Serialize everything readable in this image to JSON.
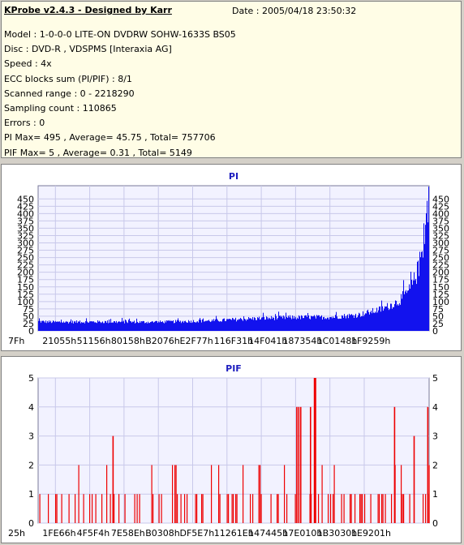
{
  "header": {
    "title": "KProbe v2.4.3 - Designed by Karr",
    "date": "Date : 2005/04/18 23:50:32"
  },
  "info_lines": [
    "Model : 1-0-0-0 LITE-ON DVDRW SOHW-1633S BS05",
    "Disc : DVD-R , VDSPMS [Interaxia AG]",
    "Speed : 4x",
    "ECC blocks sum (PI/PIF) : 8/1",
    "Scanned range : 0 - 2218290",
    "Sampling count : 110865",
    "Errors : 0",
    "PI Max= 495 , Average= 45.75 , Total= 757706",
    "PIF Max= 5 , Average= 0.31 , Total= 5149"
  ],
  "colors": {
    "pi_fill": "#1212ee",
    "pif_fill": "#ee0000",
    "plot_bg": "#f2f2ff",
    "grid": "#c8c8ea",
    "title": "#1d1dbf"
  },
  "chart_data": [
    {
      "type": "area",
      "title": "PI",
      "ylim": [
        0,
        495
      ],
      "yticks": [
        0,
        25,
        50,
        75,
        100,
        125,
        150,
        175,
        200,
        225,
        250,
        275,
        300,
        325,
        350,
        375,
        400,
        425,
        450
      ],
      "ytick_labels": [
        "0",
        "25",
        "50",
        "75",
        "100",
        "125",
        "150",
        "175",
        "200",
        "225",
        "250",
        "275",
        "300",
        "325",
        "350",
        "375",
        "400",
        "425",
        "450"
      ],
      "xtick_labels": [
        "7Fh",
        "21055h",
        "51156h",
        "80158h",
        "B2076h",
        "E2F77h",
        "116F31h",
        "14F041h",
        "187354h",
        "1C0148h",
        "1F9259h"
      ],
      "grid": true,
      "series": [
        {
          "x_fraction": [
            0,
            0.05,
            0.15,
            0.3,
            0.45,
            0.55,
            0.65,
            0.75,
            0.82,
            0.88,
            0.92,
            0.95,
            0.97,
            0.985,
            1.0
          ],
          "values": [
            32,
            30,
            31,
            30,
            35,
            42,
            46,
            47,
            55,
            75,
            100,
            140,
            200,
            300,
            490
          ]
        }
      ]
    },
    {
      "type": "bar",
      "title": "PIF",
      "ylim": [
        0,
        5
      ],
      "yticks": [
        0,
        1,
        2,
        3,
        4,
        5
      ],
      "ytick_labels": [
        "0",
        "1",
        "2",
        "3",
        "4",
        "5"
      ],
      "xtick_labels": [
        "25h",
        "1FE66h",
        "4F5F4h",
        "7E58Eh",
        "B0308h",
        "DF5E7h",
        "11261Eh",
        "147445h",
        "17E010h",
        "1B3030h",
        "1E9201h"
      ],
      "grid": true,
      "spikes": [
        {
          "x_fraction": 0.19,
          "value": 3
        },
        {
          "x_fraction": 0.66,
          "value": 4
        },
        {
          "x_fraction": 0.665,
          "value": 4
        },
        {
          "x_fraction": 0.67,
          "value": 4
        },
        {
          "x_fraction": 0.695,
          "value": 4
        },
        {
          "x_fraction": 0.705,
          "value": 5
        },
        {
          "x_fraction": 0.708,
          "value": 5
        },
        {
          "x_fraction": 0.91,
          "value": 4
        },
        {
          "x_fraction": 0.96,
          "value": 3
        },
        {
          "x_fraction": 0.995,
          "value": 4
        }
      ]
    }
  ]
}
